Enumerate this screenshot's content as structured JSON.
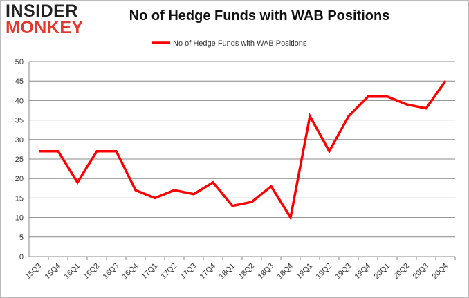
{
  "logo": {
    "line1": "INSIDER",
    "line2": "MONKEY"
  },
  "chart_data": {
    "type": "line",
    "title": "No of Hedge Funds with WAB Positions",
    "categories": [
      "15Q3",
      "15Q4",
      "16Q1",
      "16Q2",
      "16Q3",
      "16Q4",
      "17Q1",
      "17Q2",
      "17Q3",
      "17Q4",
      "18Q1",
      "18Q2",
      "18Q3",
      "18Q4",
      "19Q1",
      "19Q2",
      "19Q3",
      "19Q4",
      "20Q1",
      "20Q2",
      "20Q3",
      "20Q4"
    ],
    "series": [
      {
        "name": "No of Hedge Funds with WAB Positions",
        "color": "#ff0000",
        "values": [
          27,
          27,
          19,
          27,
          27,
          17,
          15,
          17,
          16,
          19,
          13,
          14,
          18,
          10,
          36,
          27,
          36,
          41,
          41,
          39,
          38,
          45
        ]
      }
    ],
    "ylim": [
      0,
      50
    ],
    "yticks": [
      0,
      5,
      10,
      15,
      20,
      25,
      30,
      35,
      40,
      45,
      50
    ],
    "grid": true,
    "legend": "top-center"
  }
}
